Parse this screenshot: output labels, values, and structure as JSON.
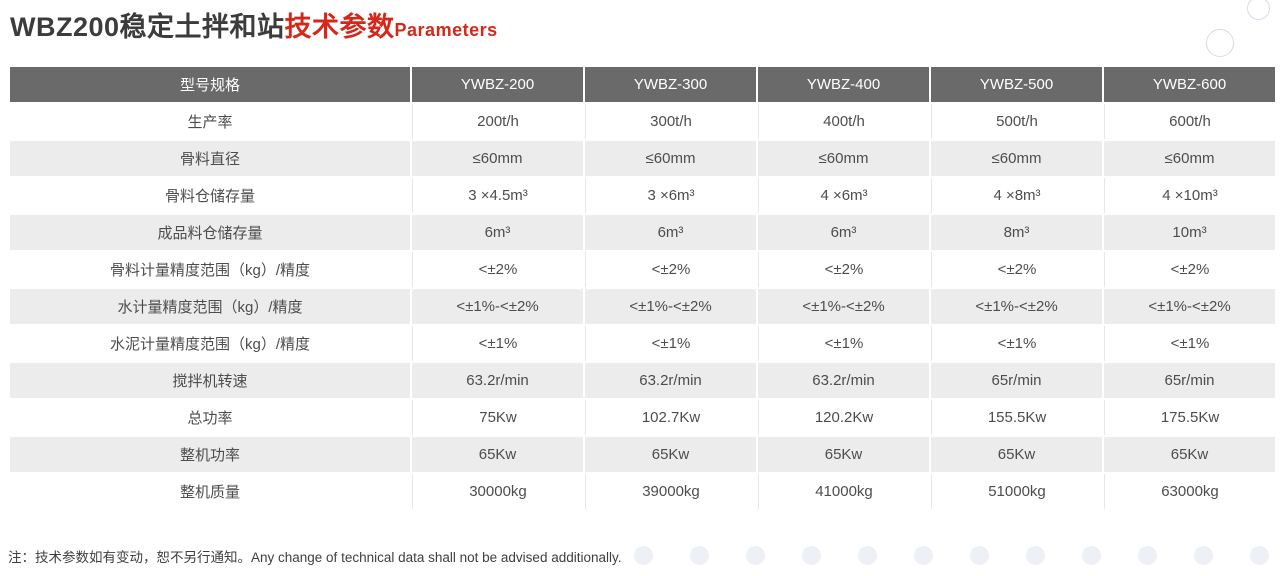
{
  "title": {
    "main": "WBZ200稳定土拌和站",
    "highlight": "技术参数",
    "en": "Parameters"
  },
  "table": {
    "header": [
      "型号规格",
      "YWBZ-200",
      "YWBZ-300",
      "YWBZ-400",
      "YWBZ-500",
      "YWBZ-600"
    ],
    "rows": [
      [
        "生产率",
        "200t/h",
        "300t/h",
        "400t/h",
        "500t/h",
        "600t/h"
      ],
      [
        "骨料直径",
        "≤60mm",
        "≤60mm",
        "≤60mm",
        "≤60mm",
        "≤60mm"
      ],
      [
        "骨料仓储存量",
        "3 ×4.5m³",
        "3 ×6m³",
        "4 ×6m³",
        "4 ×8m³",
        "4 ×10m³"
      ],
      [
        "成品料仓储存量",
        "6m³",
        "6m³",
        "6m³",
        "8m³",
        "10m³"
      ],
      [
        "骨料计量精度范围（kg）/精度",
        "<±2%",
        "<±2%",
        "<±2%",
        "<±2%",
        "<±2%"
      ],
      [
        "水计量精度范围（kg）/精度",
        "<±1%-<±2%",
        "<±1%-<±2%",
        "<±1%-<±2%",
        "<±1%-<±2%",
        "<±1%-<±2%"
      ],
      [
        "水泥计量精度范围（kg）/精度",
        "<±1%",
        "<±1%",
        "<±1%",
        "<±1%",
        "<±1%"
      ],
      [
        "搅拌机转速",
        "63.2r/min",
        "63.2r/min",
        "63.2r/min",
        "65r/min",
        "65r/min"
      ],
      [
        "总功率",
        "75Kw",
        "102.7Kw",
        "120.2Kw",
        "155.5Kw",
        "175.5Kw"
      ],
      [
        "整机功率",
        "65Kw",
        "65Kw",
        "65Kw",
        "65Kw",
        "65Kw"
      ],
      [
        "整机质量",
        "30000kg",
        "39000kg",
        "41000kg",
        "51000kg",
        "63000kg"
      ]
    ]
  },
  "note": "注：技术参数如有变动，恕不另行通知。Any change of technical data shall not be advised additionally.",
  "colors": {
    "accent_red": "#d3281a",
    "header_bg": "#6a6a6a",
    "row_alt_bg": "#ececec",
    "text": "#4d4d4d"
  }
}
